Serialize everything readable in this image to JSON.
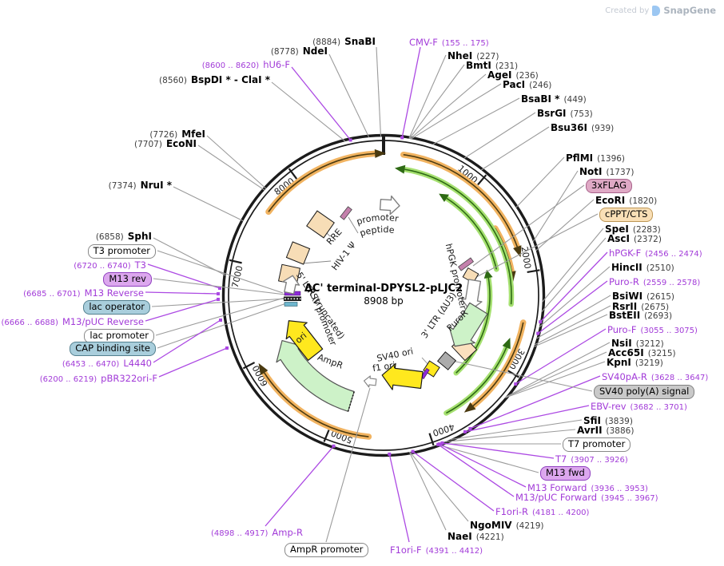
{
  "watermark": {
    "created_by": "Created by",
    "brand": "SnapGene"
  },
  "plasmid": {
    "name": "ΔC' terminal-DPYSL2-pLJC2",
    "size": "8908 bp"
  },
  "ticks": [
    "1000",
    "2000",
    "3000",
    "4000",
    "5000",
    "6000",
    "7000",
    "8000"
  ],
  "colors": {
    "primer_text": "#A23BD8",
    "primer_line": "#AC49E3",
    "gray_line": "#9B9B9B",
    "backbone": "#1b1b1b",
    "orf_orange": "#F1B360",
    "orf_green": "#A5E070",
    "feature_tan": "#F7DDB6",
    "feature_yellow": "#FFE81E",
    "feature_green": "#CDF2C8"
  },
  "sites": {
    "snabi": {
      "pos": "(8884)",
      "name": "SnaBI"
    },
    "ndei": {
      "pos": "(8778)",
      "name": "NdeI"
    },
    "bspdi_clai": {
      "pos": "(8560)",
      "name": "BspDI * - ClaI *"
    },
    "mfei": {
      "pos": "(7726)",
      "name": "MfeI"
    },
    "econi": {
      "pos": "(7707)",
      "name": "EcoNI"
    },
    "nrui": {
      "pos": "(7374)",
      "name": "NruI *"
    },
    "sphi": {
      "pos": "(6858)",
      "name": "SphI"
    },
    "nhei": {
      "name": "NheI",
      "pos": "(227)"
    },
    "bmti": {
      "name": "BmtI",
      "pos": "(231)"
    },
    "agei": {
      "name": "AgeI",
      "pos": "(236)"
    },
    "paci": {
      "name": "PacI",
      "pos": "(246)"
    },
    "bsabi": {
      "name": "BsaBI *",
      "pos": "(449)"
    },
    "bsrgi": {
      "name": "BsrGI",
      "pos": "(753)"
    },
    "bsu36i": {
      "name": "Bsu36I",
      "pos": "(939)"
    },
    "pflmi": {
      "name": "PflMI",
      "pos": "(1396)"
    },
    "noti": {
      "name": "NotI",
      "pos": "(1737)"
    },
    "ecori": {
      "name": "EcoRI",
      "pos": "(1820)"
    },
    "spei": {
      "name": "SpeI",
      "pos": "(2283)"
    },
    "asci": {
      "name": "AscI",
      "pos": "(2372)"
    },
    "hincii": {
      "name": "HincII",
      "pos": "(2510)"
    },
    "bsiwi": {
      "name": "BsiWI",
      "pos": "(2615)"
    },
    "rsrii": {
      "name": "RsrII",
      "pos": "(2675)"
    },
    "bsteii": {
      "name": "BstEII",
      "pos": "(2693)"
    },
    "nsii": {
      "name": "NsiI",
      "pos": "(3212)"
    },
    "acc65i": {
      "name": "Acc65I",
      "pos": "(3215)"
    },
    "kpni": {
      "name": "KpnI",
      "pos": "(3219)"
    },
    "sfii": {
      "name": "SfiI",
      "pos": "(3839)"
    },
    "avrii": {
      "name": "AvrII",
      "pos": "(3886)"
    },
    "ngomiv": {
      "name": "NgoMIV",
      "pos": "(4219)"
    },
    "naei": {
      "name": "NaeI",
      "pos": "(4221)"
    }
  },
  "primers": {
    "hu6_f": {
      "range": "(8600 .. 8620)",
      "name": "hU6-F"
    },
    "cmv_f": {
      "name": "CMV-F",
      "range": "(155 .. 175)"
    },
    "t3": {
      "range": "(6720 .. 6740)",
      "name": "T3"
    },
    "m13_reverse": {
      "range": "(6685 .. 6701)",
      "name": "M13 Reverse"
    },
    "m13_puc_reverse": {
      "range": "(6666 .. 6688)",
      "name": "M13/pUC Reverse"
    },
    "l4440": {
      "range": "(6453 .. 6470)",
      "name": "L4440"
    },
    "pbr322ori_f": {
      "range": "(6200 .. 6219)",
      "name": "pBR322ori-F"
    },
    "hpgk_f": {
      "name": "hPGK-F",
      "range": "(2456 .. 2474)"
    },
    "puro_r": {
      "name": "Puro-R",
      "range": "(2559 .. 2578)"
    },
    "puro_f": {
      "name": "Puro-F",
      "range": "(3055 .. 3075)"
    },
    "sv40pa_r": {
      "name": "SV40pA-R",
      "range": "(3628 .. 3647)"
    },
    "ebv_rev": {
      "name": "EBV-rev",
      "range": "(3682 .. 3701)"
    },
    "t7": {
      "name": "T7",
      "range": "(3907 .. 3926)"
    },
    "m13_forward": {
      "name": "M13 Forward",
      "range": "(3936 .. 3953)"
    },
    "m13_puc_forward": {
      "name": "M13/pUC Forward",
      "range": "(3945 .. 3967)"
    },
    "f1ori_r": {
      "name": "F1ori-R",
      "range": "(4181 .. 4200)"
    },
    "f1ori_f": {
      "name": "F1ori-F",
      "range": "(4391 .. 4412)"
    },
    "amp_r": {
      "range": "(4898 .. 4917)",
      "name": "Amp-R"
    }
  },
  "badges": {
    "t3_promoter": "T3 promoter",
    "m13_rev": "M13 rev",
    "lac_operator": "lac operator",
    "lac_promoter": "lac promoter",
    "cap_binding_site": "CAP binding site",
    "x3flag": "3xFLAG",
    "cppt_cts": "cPPT/CTS",
    "sv40_polya": "SV40 poly(A) signal",
    "t7_promoter": "T7 promoter",
    "m13_fwd": "M13 fwd",
    "ampr_promoter": "AmpR promoter"
  },
  "features": {
    "cmv_promoter": "CMV promoter",
    "gp41": "gp41 peptide",
    "rre": "RRE",
    "hiv1_psi": "HIV-1 Ψ",
    "ltr5": "5' LTR (truncated)",
    "rsv_promoter": "RSV promoter",
    "hpgk_promoter": "hPGK promoter",
    "puror": "PuroR",
    "ltr3": "3' LTR (ΔU3)",
    "sv40_ori": "SV40 ori",
    "f1_ori": "f1 ori",
    "ampr": "AmpR",
    "ori": "ori"
  }
}
